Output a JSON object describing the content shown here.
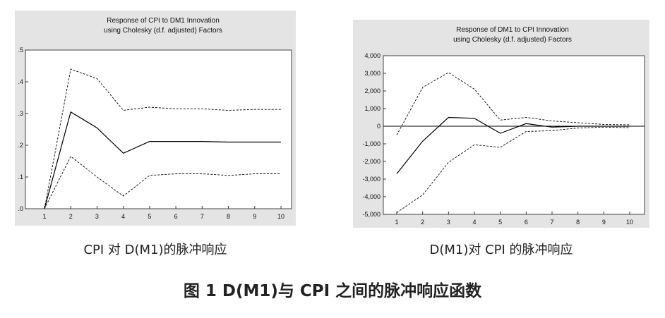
{
  "chart_data": [
    {
      "type": "line",
      "title": "Response of CPI to DM1 Innovation",
      "subtitle": "using Cholesky (d.f. adjusted) Factors",
      "x": [
        1,
        2,
        3,
        4,
        5,
        6,
        7,
        8,
        9,
        10
      ],
      "xticks": [
        "1",
        "2",
        "3",
        "4",
        "5",
        "6",
        "7",
        "8",
        "9",
        "10"
      ],
      "yticks": [
        ".0",
        ".1",
        ".2",
        ".3",
        ".4",
        ".5"
      ],
      "ytick_values": [
        0,
        0.1,
        0.2,
        0.3,
        0.4,
        0.5
      ],
      "ylim": [
        0,
        0.5
      ],
      "zero_line": false,
      "series": [
        {
          "style": "solid",
          "values": [
            0.0,
            0.305,
            0.255,
            0.175,
            0.212,
            0.212,
            0.212,
            0.21,
            0.21,
            0.21
          ]
        },
        {
          "style": "dashed",
          "values": [
            0.0,
            0.44,
            0.41,
            0.31,
            0.32,
            0.315,
            0.315,
            0.31,
            0.313,
            0.313
          ]
        },
        {
          "style": "dashed",
          "values": [
            0.0,
            0.165,
            0.1,
            0.04,
            0.105,
            0.11,
            0.11,
            0.105,
            0.11,
            0.11
          ]
        }
      ]
    },
    {
      "type": "line",
      "title": "Response of DM1 to CPI Innovation",
      "subtitle": "using Cholesky (d.f. adjusted) Factors",
      "x": [
        1,
        2,
        3,
        4,
        5,
        6,
        7,
        8,
        9,
        10
      ],
      "xticks": [
        "1",
        "2",
        "3",
        "4",
        "5",
        "6",
        "7",
        "8",
        "9",
        "10"
      ],
      "yticks": [
        "-5,000",
        "-4,000",
        "-3,000",
        "-2,000",
        "-1,000",
        "0",
        "1,000",
        "2,000",
        "3,000",
        "4,000"
      ],
      "ytick_values": [
        -5000,
        -4000,
        -3000,
        -2000,
        -1000,
        0,
        1000,
        2000,
        3000,
        4000
      ],
      "ylim": [
        -5000,
        4000
      ],
      "zero_line": true,
      "series": [
        {
          "style": "solid",
          "values": [
            -2700,
            -850,
            500,
            450,
            -400,
            150,
            -50,
            0,
            0,
            0
          ]
        },
        {
          "style": "dashed",
          "values": [
            -500,
            2200,
            3050,
            2100,
            350,
            500,
            300,
            200,
            100,
            80
          ]
        },
        {
          "style": "dashed",
          "values": [
            -4900,
            -3900,
            -2050,
            -1050,
            -1200,
            -300,
            -250,
            -100,
            -50,
            -80
          ]
        }
      ]
    }
  ],
  "captions": {
    "left": "CPI 对 D(M1)的脉冲响应",
    "right": "D(M1)对 CPI 的脉冲响应"
  },
  "figure_title": "图 1   D(M1)与 CPI 之间的脉冲响应函数"
}
